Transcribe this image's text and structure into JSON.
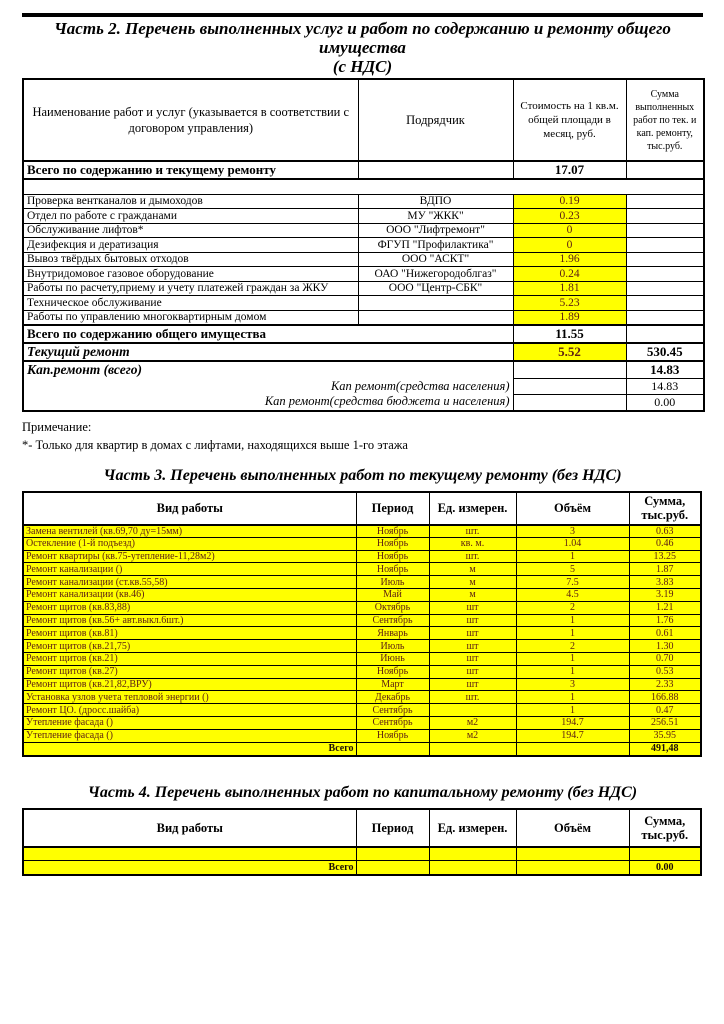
{
  "colors": {
    "highlight": "#ffff00",
    "highlight_text": "#5e2113",
    "ink": "#000000",
    "paper": "#ffffff"
  },
  "part2": {
    "title_line1": "Часть 2. Перечень выполненных услуг и работ по содержанию и ремонту общего имущества",
    "title_line2": "(с НДС)",
    "header": {
      "name": "Наименование работ и услуг (указывается в соответствии с договором управления)",
      "contractor": "Подрядчик",
      "cost": "Стоимость на 1 кв.м. общей площади в месяц, руб.",
      "sum": "Сумма выполненных работ по тек. и кап. ремонту, тыс.руб."
    },
    "rows": [
      {
        "style": "total1",
        "name": "Всего по содержанию и текущему ремонту",
        "cost": "17.07"
      },
      {
        "style": "spacer"
      },
      {
        "style": "data",
        "name": "Проверка вентканалов и дымоходов",
        "contractor": "ВДПО",
        "cost": "0.19"
      },
      {
        "style": "data",
        "name": "Отдел по работе с гражданами",
        "contractor": "МУ \"ЖКК\"",
        "cost": "0.23"
      },
      {
        "style": "data",
        "name": "Обслуживание лифтов*",
        "contractor": "ООО \"Лифтремонт\"",
        "cost": "0"
      },
      {
        "style": "data",
        "name": "Дезифекция и дератизация",
        "contractor": "ФГУП \"Профилактика\"",
        "cost": "0"
      },
      {
        "style": "data",
        "name": "Вывоз твёрдых бытовых отходов",
        "contractor": "ООО \"АСКТ\"",
        "cost": "1.96"
      },
      {
        "style": "data",
        "name": "Внутридомовое газовое оборудование",
        "contractor": "ОАО \"Нижегородоблгаз\"",
        "cost": "0.24"
      },
      {
        "style": "data",
        "name": "Работы по расчету,приему и учету платежей граждан за ЖКУ",
        "contractor": "ООО \"Центр-СБК\"",
        "cost": "1.81"
      },
      {
        "style": "data",
        "name": "Техническое обслуживание",
        "contractor": "",
        "cost": "5.23"
      },
      {
        "style": "data",
        "name": "Работы по управлению многоквартирным домом",
        "contractor": "",
        "cost": "1.89"
      },
      {
        "style": "total2",
        "name": "Всего по содержанию общего имущества",
        "cost": "11.55"
      },
      {
        "style": "current",
        "name": "Текущий ремонт",
        "cost": "5.52",
        "sum": "530.45"
      },
      {
        "style": "kap1",
        "name": "Кап.ремонт (всего)",
        "sum": "14.83"
      },
      {
        "style": "kap2",
        "name": "Кап ремонт(средства населения)",
        "sum": "14.83"
      },
      {
        "style": "kap3",
        "name": "Кап ремонт(средства бюджета и населения)",
        "sum": "0.00"
      }
    ]
  },
  "note": {
    "label": "Примечание:",
    "text": "*- Только для квартир в домах с лифтами, находящихся выше 1-го этажа"
  },
  "part3": {
    "title": "Часть 3. Перечень выполненных работ по текущему ремонту (без НДС)",
    "headers": [
      "Вид работы",
      "Период",
      "Ед. измерен.",
      "Объём",
      "Сумма, тыс.руб."
    ],
    "rows": [
      [
        "Замена вентилей (кв.69,70 ду=15мм)",
        "Ноябрь",
        "шт.",
        "3",
        "0.63"
      ],
      [
        "Остекление (1-й подъезд)",
        "Ноябрь",
        "кв. м.",
        "1.04",
        "0.46"
      ],
      [
        "Ремонт квартиры (кв.75-утепление-11,28м2)",
        "Ноябрь",
        "шт.",
        "1",
        "13.25"
      ],
      [
        "Ремонт канализации ()",
        "Ноябрь",
        "м",
        "5",
        "1.87"
      ],
      [
        "Ремонт канализации (ст.кв.55,58)",
        "Июль",
        "м",
        "7.5",
        "3.83"
      ],
      [
        "Ремонт канализации (кв.46)",
        "Май",
        "м",
        "4.5",
        "3.19"
      ],
      [
        "Ремонт щитов (кв.83,88)",
        "Октябрь",
        "шт",
        "2",
        "1.21"
      ],
      [
        "Ремонт щитов (кв.56+ авт.выкл.6шт.)",
        "Сентябрь",
        "шт",
        "1",
        "1.76"
      ],
      [
        "Ремонт щитов (кв.81)",
        "Январь",
        "шт",
        "1",
        "0.61"
      ],
      [
        "Ремонт щитов (кв.21,75)",
        "Июль",
        "шт",
        "2",
        "1.30"
      ],
      [
        "Ремонт щитов (кв.21)",
        "Июнь",
        "шт",
        "1",
        "0.70"
      ],
      [
        "Ремонт щитов (кв.27)",
        "Ноябрь",
        "шт",
        "1",
        "0.53"
      ],
      [
        "Ремонт щитов (кв.21,82,ВРУ)",
        "Март",
        "шт",
        "3",
        "2.33"
      ],
      [
        "Установка узлов учета тепловой энергии ()",
        "Декабрь",
        "шт.",
        "1",
        "166.88"
      ],
      [
        "Ремонт ЦО. (дросс.шайба)",
        "Сентябрь",
        "",
        "1",
        "0.47"
      ],
      [
        "Утепление фасада ()",
        "Сентябрь",
        "м2",
        "194.7",
        "256.51"
      ],
      [
        "Утепление фасада ()",
        "Ноябрь",
        "м2",
        "194.7",
        "35.95"
      ]
    ],
    "total_label": "Всего",
    "total_sum": "491,48"
  },
  "part4": {
    "title": "Часть 4. Перечень выполненных работ по капитальному ремонту (без НДС)",
    "headers": [
      "Вид работы",
      "Период",
      "Ед. измерен.",
      "Объём",
      "Сумма, тыс.руб."
    ],
    "rows": [
      [
        "",
        "",
        "",
        "",
        ""
      ]
    ],
    "total_label": "Всего",
    "total_sum": "0.00"
  }
}
